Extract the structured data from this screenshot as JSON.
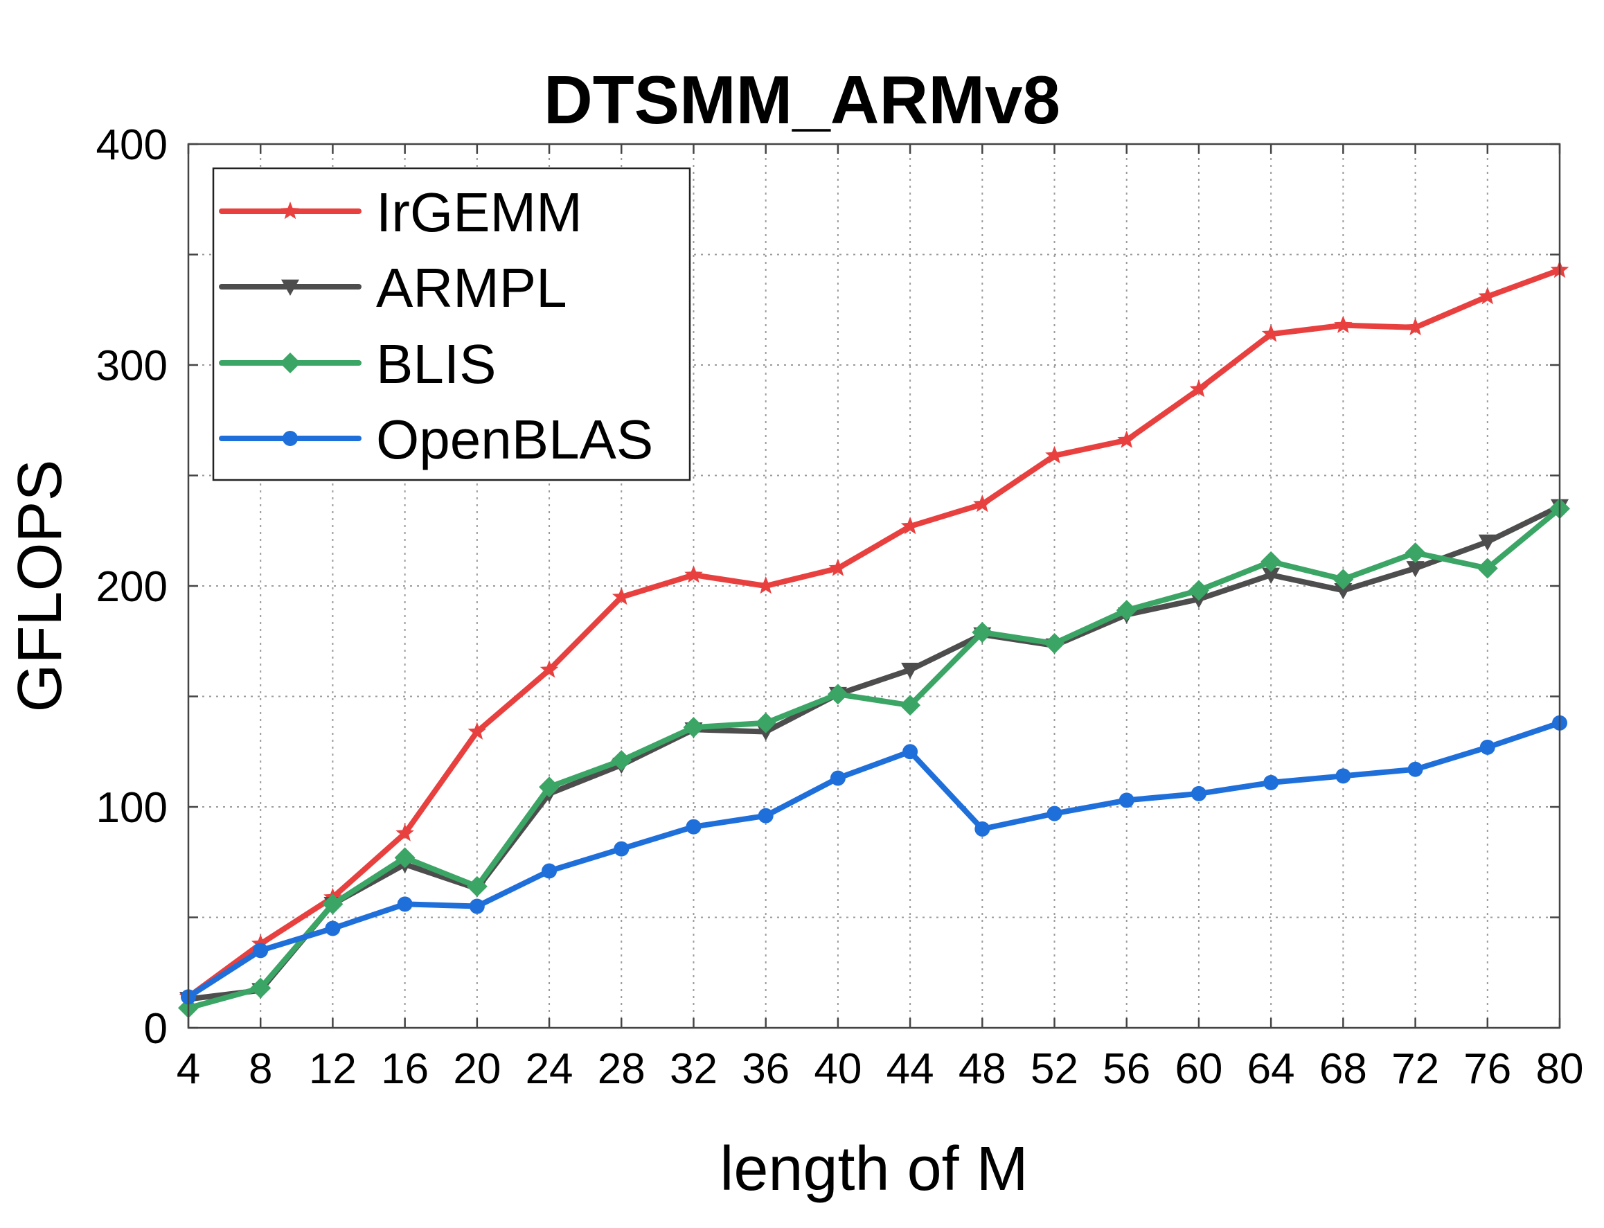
{
  "chart_data": {
    "type": "line",
    "title": "DTSMM_ARMv8",
    "xlabel": "length of M",
    "ylabel": "GFLOPS",
    "x": [
      4,
      8,
      12,
      16,
      20,
      24,
      28,
      32,
      36,
      40,
      44,
      48,
      52,
      56,
      60,
      64,
      68,
      72,
      76,
      80
    ],
    "xlim": [
      4,
      80
    ],
    "ylim": [
      0,
      400
    ],
    "yticks": [
      0,
      100,
      200,
      300,
      400
    ],
    "grid": true,
    "legend_position": "top-left",
    "series": [
      {
        "name": "IrGEMM",
        "color": "#e8403f",
        "marker": "star",
        "values": [
          14,
          38,
          59,
          88,
          134,
          162,
          195,
          205,
          200,
          208,
          227,
          237,
          259,
          266,
          289,
          314,
          318,
          317,
          331,
          343
        ]
      },
      {
        "name": "ARMPL",
        "color": "#4d4d4d",
        "marker": "triangle-down",
        "values": [
          13,
          17,
          56,
          74,
          63,
          106,
          119,
          135,
          134,
          151,
          162,
          178,
          173,
          187,
          194,
          205,
          198,
          208,
          220,
          236
        ]
      },
      {
        "name": "BLIS",
        "color": "#3aa564",
        "marker": "diamond",
        "values": [
          9,
          18,
          56,
          77,
          64,
          109,
          121,
          136,
          138,
          151,
          146,
          179,
          174,
          189,
          198,
          211,
          203,
          215,
          208,
          235
        ]
      },
      {
        "name": "OpenBLAS",
        "color": "#1f6fdb",
        "marker": "circle",
        "values": [
          14,
          35,
          45,
          56,
          55,
          71,
          81,
          91,
          96,
          113,
          125,
          90,
          97,
          103,
          106,
          111,
          114,
          117,
          127,
          138
        ]
      }
    ]
  }
}
